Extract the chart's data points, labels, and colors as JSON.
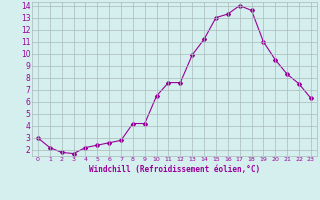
{
  "x": [
    0,
    1,
    2,
    3,
    4,
    5,
    6,
    7,
    8,
    9,
    10,
    11,
    12,
    13,
    14,
    15,
    16,
    17,
    18,
    19,
    20,
    21,
    22,
    23
  ],
  "y": [
    3.0,
    2.2,
    1.8,
    1.7,
    2.2,
    2.4,
    2.6,
    2.8,
    4.2,
    4.2,
    6.5,
    7.6,
    7.6,
    9.9,
    11.2,
    13.0,
    13.3,
    14.0,
    13.6,
    11.0,
    9.5,
    8.3,
    7.5,
    6.3
  ],
  "line_color": "#990099",
  "marker": "D",
  "marker_size": 2.0,
  "bg_color": "#d5efef",
  "grid_color": "#aabbbb",
  "xlabel": "Windchill (Refroidissement éolien,°C)",
  "xlabel_color": "#990099",
  "tick_color": "#990099",
  "ylim": [
    1.5,
    14.3
  ],
  "yticks": [
    2,
    3,
    4,
    5,
    6,
    7,
    8,
    9,
    10,
    11,
    12,
    13,
    14
  ],
  "xticks": [
    0,
    1,
    2,
    3,
    4,
    5,
    6,
    7,
    8,
    9,
    10,
    11,
    12,
    13,
    14,
    15,
    16,
    17,
    18,
    19,
    20,
    21,
    22,
    23
  ],
  "xtick_labels": [
    "0",
    "1",
    "2",
    "3",
    "4",
    "5",
    "6",
    "7",
    "8",
    "9",
    "10",
    "11",
    "12",
    "13",
    "14",
    "15",
    "16",
    "17",
    "18",
    "19",
    "20",
    "21",
    "22",
    "23"
  ]
}
